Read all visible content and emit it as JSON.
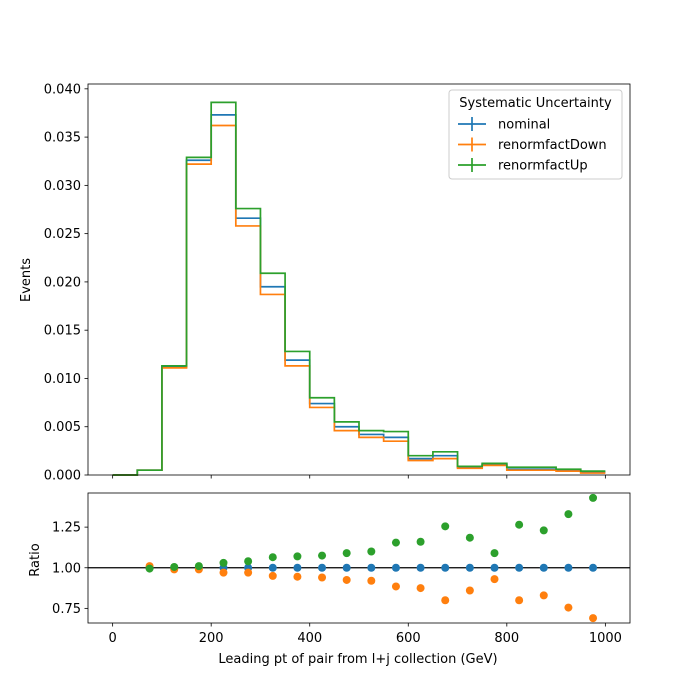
{
  "chart_data": [
    {
      "type": "line",
      "drawstyle": "step",
      "ylabel": "Events",
      "xlim": [
        -50,
        1050
      ],
      "ylim": [
        0,
        0.0405
      ],
      "xticks": [
        0,
        200,
        400,
        600,
        800,
        1000
      ],
      "yticks": [
        0.0,
        0.005,
        0.01,
        0.015,
        0.02,
        0.025,
        0.03,
        0.035,
        0.04
      ],
      "ytick_labels": [
        "0.000",
        "0.005",
        "0.010",
        "0.015",
        "0.020",
        "0.025",
        "0.030",
        "0.035",
        "0.040"
      ],
      "bin_edges": [
        0,
        50,
        100,
        150,
        200,
        250,
        300,
        350,
        400,
        450,
        500,
        550,
        600,
        650,
        700,
        750,
        800,
        850,
        900,
        950,
        1000
      ],
      "legend": {
        "title": "Systematic Uncertainty",
        "position": "top-right"
      },
      "series": [
        {
          "name": "nominal",
          "color": "#1f77b4",
          "values": [
            0.0,
            0.0005,
            0.0112,
            0.0326,
            0.0373,
            0.0266,
            0.0195,
            0.0119,
            0.0074,
            0.005,
            0.0042,
            0.0039,
            0.0017,
            0.002,
            0.0008,
            0.0011,
            0.0006,
            0.0006,
            0.0005,
            0.0003
          ]
        },
        {
          "name": "renormfactDown",
          "color": "#ff7f0e",
          "values": [
            0.0,
            0.0005,
            0.0111,
            0.0322,
            0.0362,
            0.0258,
            0.0187,
            0.0113,
            0.007,
            0.0046,
            0.0039,
            0.0035,
            0.0015,
            0.0017,
            0.0007,
            0.001,
            0.0005,
            0.0005,
            0.0004,
            0.0002
          ]
        },
        {
          "name": "renormfactUp",
          "color": "#2ca02c",
          "values": [
            0.0,
            0.0005,
            0.0113,
            0.0329,
            0.0386,
            0.0276,
            0.0209,
            0.0128,
            0.008,
            0.0055,
            0.0046,
            0.0045,
            0.002,
            0.0024,
            0.0009,
            0.0012,
            0.0008,
            0.0008,
            0.0006,
            0.0004
          ]
        }
      ]
    },
    {
      "type": "scatter",
      "xlabel": "Leading pt of pair from l+j collection (GeV)",
      "ylabel": "Ratio",
      "xlim": [
        -50,
        1050
      ],
      "ylim": [
        0.66,
        1.46
      ],
      "xticks": [
        0,
        200,
        400,
        600,
        800,
        1000
      ],
      "xtick_labels": [
        "0",
        "200",
        "400",
        "600",
        "800",
        "1000"
      ],
      "yticks": [
        0.75,
        1.0,
        1.25
      ],
      "ytick_labels": [
        "0.75",
        "1.00",
        "1.25"
      ],
      "reference_line": 1.0,
      "x": [
        75,
        125,
        175,
        225,
        275,
        325,
        375,
        425,
        475,
        525,
        575,
        625,
        675,
        725,
        775,
        825,
        875,
        925,
        975
      ],
      "series": [
        {
          "name": "nominal",
          "color": "#1f77b4",
          "values": [
            1.0,
            1.0,
            1.0,
            1.0,
            1.0,
            1.0,
            1.0,
            1.0,
            1.0,
            1.0,
            1.0,
            1.0,
            1.0,
            1.0,
            1.0,
            1.0,
            1.0,
            1.0,
            1.0
          ]
        },
        {
          "name": "renormfactDown",
          "color": "#ff7f0e",
          "values": [
            1.01,
            0.99,
            0.99,
            0.97,
            0.97,
            0.95,
            0.945,
            0.94,
            0.925,
            0.92,
            0.885,
            0.875,
            0.8,
            0.86,
            0.93,
            0.8,
            0.83,
            0.755,
            0.69
          ]
        },
        {
          "name": "renormfactUp",
          "color": "#2ca02c",
          "values": [
            0.995,
            1.005,
            1.01,
            1.03,
            1.04,
            1.065,
            1.07,
            1.075,
            1.09,
            1.1,
            1.155,
            1.16,
            1.255,
            1.185,
            1.09,
            1.265,
            1.23,
            1.33,
            1.43
          ]
        }
      ]
    }
  ]
}
